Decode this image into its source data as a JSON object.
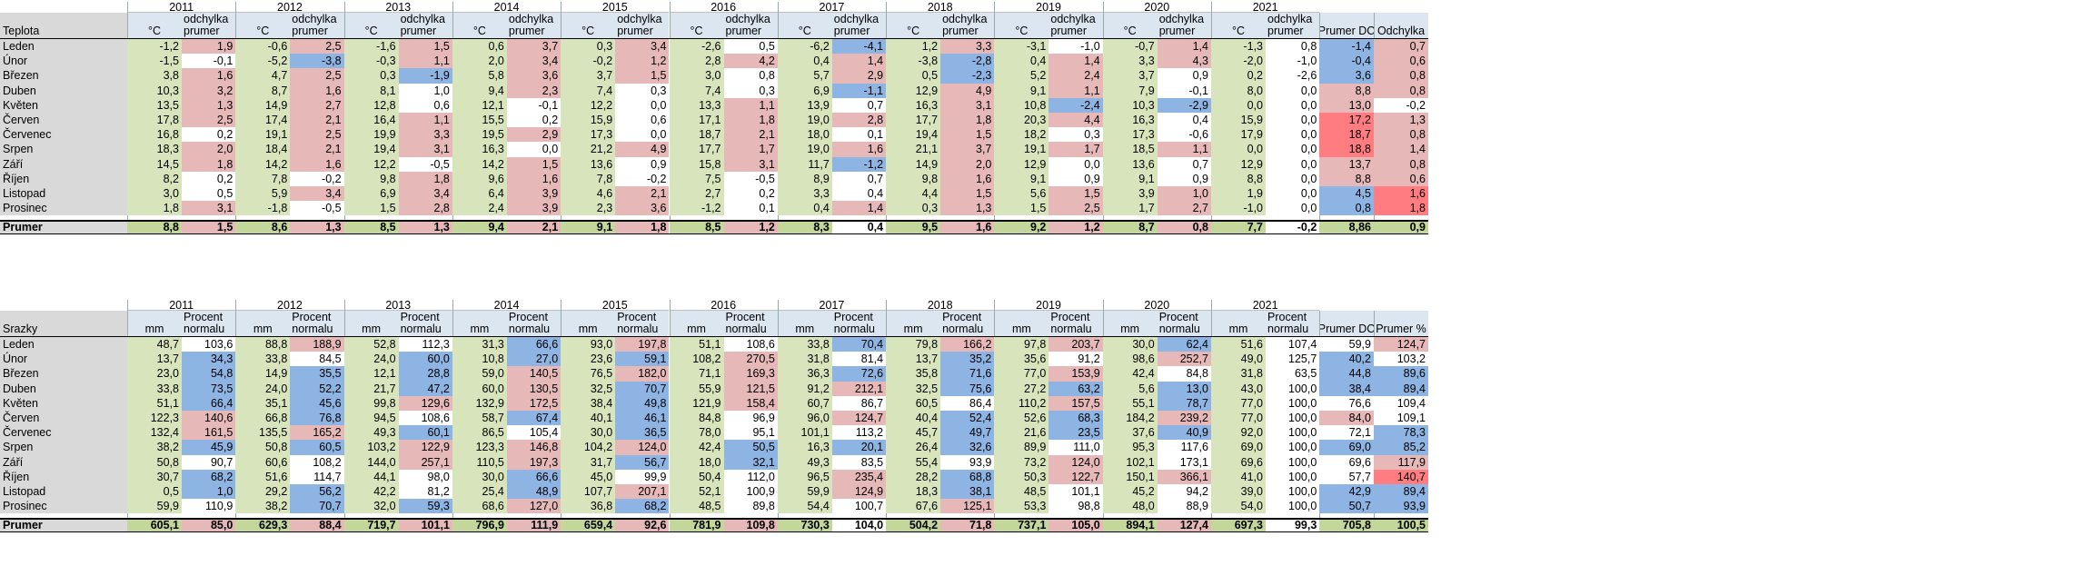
{
  "colors": {
    "green": "#d8e4bc",
    "header": "#dce6f1",
    "pink": "#e6b8b7",
    "blue": "#8db4e2",
    "grey": "#d9d9d9",
    "totals_green": "#c4d79b",
    "white": "#ffffff",
    "pink_strong": "#ff7c80",
    "green_corner": "#008000"
  },
  "teplota": {
    "title": "Teplota",
    "years": [
      "2011",
      "2012",
      "2013",
      "2014",
      "2015",
      "2016",
      "2017",
      "2018",
      "2019",
      "2020",
      "2021"
    ],
    "col_unit": "°C",
    "col_dev_1": "odchylka",
    "col_dev_2": "prumer",
    "summary_headers": [
      "Prumer DC",
      "Odchylka"
    ],
    "months": [
      "Leden",
      "Únor",
      "Březen",
      "Duben",
      "Květen",
      "Červen",
      "Červenec",
      "Srpen",
      "Září",
      "Říjen",
      "Listopad",
      "Prosinec"
    ],
    "rows": [
      {
        "v": [
          "-1,2",
          "-1,5",
          "3,8",
          "10,3",
          "13,5",
          "17,8",
          "16,8",
          "18,3",
          "14,5",
          "8,2",
          "3,0",
          "1,8"
        ],
        "d": [
          "1,9",
          "-0,1",
          "1,6",
          "3,2",
          "1,3",
          "2,5",
          "0,2",
          "2,0",
          "1,8",
          "0,2",
          "0,5",
          "3,1"
        ],
        "dc": [
          "p",
          "w",
          "p",
          "p",
          "p",
          "p",
          "w",
          "p",
          "p",
          "w",
          "w",
          "p"
        ]
      },
      {
        "v": [
          "-0,6",
          "-5,2",
          "4,7",
          "8,7",
          "14,9",
          "17,4",
          "19,1",
          "18,4",
          "14,2",
          "7,8",
          "5,9",
          "-1,8"
        ],
        "d": [
          "2,5",
          "-3,8",
          "2,5",
          "1,6",
          "2,7",
          "2,1",
          "2,5",
          "2,1",
          "1,6",
          "-0,2",
          "3,4",
          "-0,5"
        ],
        "dc": [
          "p",
          "b",
          "p",
          "p",
          "p",
          "p",
          "p",
          "p",
          "p",
          "w",
          "p",
          "w"
        ]
      },
      {
        "v": [
          "-1,6",
          "-0,3",
          "0,3",
          "8,1",
          "12,8",
          "16,4",
          "19,9",
          "19,4",
          "12,2",
          "9,8",
          "6,9",
          "1,5"
        ],
        "d": [
          "1,5",
          "1,1",
          "-1,9",
          "1,0",
          "0,6",
          "1,1",
          "3,3",
          "3,1",
          "-0,5",
          "1,8",
          "3,4",
          "2,8"
        ],
        "dc": [
          "p",
          "p",
          "b",
          "w",
          "w",
          "p",
          "p",
          "p",
          "w",
          "p",
          "p",
          "p"
        ]
      },
      {
        "v": [
          "0,6",
          "2,0",
          "5,8",
          "9,4",
          "12,1",
          "15,5",
          "19,5",
          "16,3",
          "14,2",
          "9,6",
          "6,4",
          "2,4"
        ],
        "d": [
          "3,7",
          "3,4",
          "3,6",
          "2,3",
          "-0,1",
          "0,2",
          "2,9",
          "0,0",
          "1,5",
          "1,6",
          "3,9",
          "3,9"
        ],
        "dc": [
          "p",
          "p",
          "p",
          "p",
          "w",
          "w",
          "p",
          "w",
          "p",
          "p",
          "p",
          "p"
        ]
      },
      {
        "v": [
          "0,3",
          "-0,2",
          "3,7",
          "7,4",
          "12,2",
          "15,9",
          "17,3",
          "21,2",
          "13,6",
          "7,8",
          "4,6",
          "2,3"
        ],
        "d": [
          "3,4",
          "1,2",
          "1,5",
          "0,3",
          "0,0",
          "0,6",
          "0,0",
          "4,9",
          "0,9",
          "-0,2",
          "2,1",
          "3,6"
        ],
        "dc": [
          "p",
          "p",
          "p",
          "w",
          "w",
          "w",
          "w",
          "p",
          "w",
          "w",
          "p",
          "p"
        ]
      },
      {
        "v": [
          "-2,6",
          "2,8",
          "3,0",
          "7,4",
          "13,3",
          "17,1",
          "18,7",
          "17,7",
          "15,8",
          "7,5",
          "2,7",
          "-1,2"
        ],
        "d": [
          "0,5",
          "4,2",
          "0,8",
          "0,3",
          "1,1",
          "1,8",
          "2,1",
          "1,7",
          "3,1",
          "-0,5",
          "0,2",
          "0,1"
        ],
        "dc": [
          "w",
          "p",
          "w",
          "w",
          "p",
          "p",
          "p",
          "p",
          "p",
          "w",
          "w",
          "w"
        ]
      },
      {
        "v": [
          "-6,2",
          "0,4",
          "5,7",
          "6,9",
          "13,9",
          "19,0",
          "18,0",
          "19,0",
          "11,7",
          "8,9",
          "3,3",
          "0,4"
        ],
        "d": [
          "-4,1",
          "1,4",
          "2,9",
          "-1,1",
          "0,7",
          "2,8",
          "0,1",
          "1,6",
          "-1,2",
          "0,7",
          "0,4",
          "1,4"
        ],
        "dc": [
          "b",
          "p",
          "p",
          "b",
          "w",
          "p",
          "w",
          "p",
          "b",
          "w",
          "w",
          "p"
        ]
      },
      {
        "v": [
          "1,2",
          "-3,8",
          "0,5",
          "12,9",
          "16,3",
          "17,7",
          "19,4",
          "21,1",
          "14,9",
          "9,8",
          "4,4",
          "0,3"
        ],
        "d": [
          "3,3",
          "-2,8",
          "-2,3",
          "4,9",
          "3,1",
          "1,8",
          "1,5",
          "3,7",
          "2,0",
          "1,6",
          "1,5",
          "1,3"
        ],
        "dc": [
          "p",
          "b",
          "b",
          "p",
          "p",
          "p",
          "p",
          "p",
          "p",
          "p",
          "p",
          "p"
        ]
      },
      {
        "v": [
          "-3,1",
          "0,4",
          "5,2",
          "9,1",
          "10,8",
          "20,3",
          "18,2",
          "19,1",
          "12,9",
          "9,1",
          "5,6",
          "1,5"
        ],
        "d": [
          "-1,0",
          "1,4",
          "2,4",
          "1,1",
          "-2,4",
          "4,4",
          "0,3",
          "1,7",
          "0,0",
          "0,9",
          "1,5",
          "2,5"
        ],
        "dc": [
          "w",
          "p",
          "p",
          "p",
          "b",
          "p",
          "w",
          "p",
          "w",
          "w",
          "p",
          "p"
        ]
      },
      {
        "v": [
          "-0,7",
          "3,3",
          "3,7",
          "7,9",
          "10,3",
          "16,3",
          "17,3",
          "18,5",
          "13,6",
          "9,1",
          "3,9",
          "1,7"
        ],
        "d": [
          "1,4",
          "4,3",
          "0,9",
          "-0,1",
          "-2,9",
          "0,4",
          "-0,6",
          "1,1",
          "0,7",
          "0,9",
          "1,0",
          "2,7"
        ],
        "dc": [
          "p",
          "p",
          "w",
          "w",
          "b",
          "w",
          "w",
          "p",
          "w",
          "w",
          "p",
          "p"
        ]
      },
      {
        "v": [
          "-1,3",
          "-2,0",
          "0,2",
          "8,0",
          "0,0",
          "15,9",
          "17,9",
          "0,0",
          "12,9",
          "8,8",
          "1,9",
          "-1,0"
        ],
        "d": [
          "0,8",
          "-1,0",
          "-2,6",
          "0,0",
          "0,0",
          "0,0",
          "0,0",
          "0,0",
          "0,0",
          "0,0",
          "0,0",
          "0,0"
        ],
        "dc": [
          "w",
          "w",
          "w",
          "w",
          "w",
          "w",
          "w",
          "w",
          "w",
          "w",
          "w",
          "w"
        ]
      }
    ],
    "dc": [
      "-1,4",
      "-0,4",
      "3,6",
      "8,8",
      "13,0",
      "17,2",
      "18,7",
      "18,8",
      "13,7",
      "8,8",
      "4,5",
      "0,8"
    ],
    "dcc": [
      "b",
      "b",
      "b",
      "p",
      "p",
      "s",
      "s",
      "s",
      "p",
      "p",
      "b",
      "b"
    ],
    "od": [
      "0,7",
      "0,6",
      "0,8",
      "0,8",
      "-0,2",
      "1,3",
      "0,8",
      "1,4",
      "0,8",
      "0,6",
      "1,6",
      "1,8"
    ],
    "odc": [
      "p",
      "p",
      "p",
      "p",
      "w",
      "p",
      "p",
      "p",
      "p",
      "p",
      "s",
      "s"
    ],
    "total_label": "Prumer",
    "totals": [
      [
        "8,8",
        "1,5"
      ],
      [
        "8,6",
        "1,3"
      ],
      [
        "8,5",
        "1,3"
      ],
      [
        "9,4",
        "2,1"
      ],
      [
        "9,1",
        "1,8"
      ],
      [
        "8,5",
        "1,2"
      ],
      [
        "8,3",
        "0,4"
      ],
      [
        "9,5",
        "1,6"
      ],
      [
        "9,2",
        "1,2"
      ],
      [
        "8,7",
        "0,8"
      ],
      [
        "7,7",
        "-0,2"
      ]
    ],
    "total_dc": "8,86",
    "total_od": "0,9"
  },
  "srazky": {
    "title": "Srazky",
    "years": [
      "2011",
      "2012",
      "2013",
      "2014",
      "2015",
      "2016",
      "2017",
      "2018",
      "2019",
      "2020",
      "2021"
    ],
    "col_unit": "mm",
    "col_dev_1": "Procent",
    "col_dev_2": "normalu",
    "summary_headers": [
      "Prumer DC",
      "Prumer %"
    ],
    "months": [
      "Leden",
      "Únor",
      "Březen",
      "Duben",
      "Květen",
      "Červen",
      "Červenec",
      "Srpen",
      "Září",
      "Říjen",
      "Listopad",
      "Prosinec"
    ],
    "rows": [
      {
        "v": [
          "48,7",
          "13,7",
          "23,0",
          "33,8",
          "51,1",
          "122,3",
          "132,4",
          "38,2",
          "50,8",
          "30,7",
          "0,5",
          "59,9"
        ],
        "d": [
          "103,6",
          "34,3",
          "54,8",
          "73,5",
          "66,4",
          "140,6",
          "161,5",
          "45,9",
          "90,7",
          "68,2",
          "1,0",
          "110,9"
        ],
        "dc": [
          "w",
          "b",
          "b",
          "b",
          "b",
          "p",
          "p",
          "b",
          "w",
          "b",
          "b",
          "w"
        ]
      },
      {
        "v": [
          "88,8",
          "33,8",
          "14,9",
          "24,0",
          "35,1",
          "66,8",
          "135,5",
          "50,8",
          "60,6",
          "51,6",
          "29,2",
          "38,2"
        ],
        "d": [
          "188,9",
          "84,5",
          "35,5",
          "52,2",
          "45,6",
          "76,8",
          "165,2",
          "60,5",
          "108,2",
          "114,7",
          "56,2",
          "70,7"
        ],
        "dc": [
          "p",
          "w",
          "b",
          "b",
          "b",
          "b",
          "p",
          "b",
          "w",
          "w",
          "b",
          "b"
        ]
      },
      {
        "v": [
          "52,8",
          "24,0",
          "12,1",
          "21,7",
          "99,8",
          "94,5",
          "49,3",
          "103,2",
          "144,0",
          "44,1",
          "42,2",
          "32,0"
        ],
        "d": [
          "112,3",
          "60,0",
          "28,8",
          "47,2",
          "129,6",
          "108,6",
          "60,1",
          "122,9",
          "257,1",
          "98,0",
          "81,2",
          "59,3"
        ],
        "dc": [
          "w",
          "b",
          "b",
          "b",
          "p",
          "w",
          "b",
          "p",
          "p",
          "w",
          "w",
          "b"
        ]
      },
      {
        "v": [
          "31,3",
          "10,8",
          "59,0",
          "60,0",
          "132,9",
          "58,7",
          "86,5",
          "123,3",
          "110,5",
          "30,0",
          "25,4",
          "68,6"
        ],
        "d": [
          "66,6",
          "27,0",
          "140,5",
          "130,5",
          "172,5",
          "67,4",
          "105,4",
          "146,8",
          "197,3",
          "66,6",
          "48,9",
          "127,0"
        ],
        "dc": [
          "b",
          "b",
          "p",
          "p",
          "p",
          "b",
          "w",
          "p",
          "p",
          "b",
          "b",
          "p"
        ]
      },
      {
        "v": [
          "93,0",
          "23,6",
          "76,5",
          "32,5",
          "38,4",
          "40,1",
          "30,0",
          "104,2",
          "31,7",
          "45,0",
          "107,7",
          "36,8"
        ],
        "d": [
          "197,8",
          "59,1",
          "182,0",
          "70,7",
          "49,8",
          "46,1",
          "36,5",
          "124,0",
          "56,7",
          "99,9",
          "207,1",
          "68,2"
        ],
        "dc": [
          "p",
          "b",
          "p",
          "b",
          "b",
          "b",
          "b",
          "p",
          "b",
          "w",
          "p",
          "b"
        ]
      },
      {
        "v": [
          "51,1",
          "108,2",
          "71,1",
          "55,9",
          "121,9",
          "84,8",
          "78,0",
          "42,4",
          "18,0",
          "50,4",
          "52,1",
          "48,5"
        ],
        "d": [
          "108,6",
          "270,5",
          "169,3",
          "121,5",
          "158,4",
          "96,9",
          "95,1",
          "50,5",
          "32,1",
          "112,0",
          "100,9",
          "89,8"
        ],
        "dc": [
          "w",
          "p",
          "p",
          "p",
          "p",
          "w",
          "w",
          "b",
          "b",
          "w",
          "w",
          "w"
        ]
      },
      {
        "v": [
          "33,8",
          "31,8",
          "36,3",
          "91,2",
          "60,7",
          "96,0",
          "101,1",
          "16,3",
          "49,3",
          "96,5",
          "59,9",
          "54,4"
        ],
        "d": [
          "70,4",
          "81,4",
          "72,6",
          "212,1",
          "86,7",
          "124,7",
          "113,2",
          "20,1",
          "83,5",
          "235,4",
          "124,9",
          "100,7"
        ],
        "dc": [
          "b",
          "w",
          "b",
          "p",
          "w",
          "p",
          "w",
          "b",
          "w",
          "p",
          "p",
          "w"
        ]
      },
      {
        "v": [
          "79,8",
          "13,7",
          "35,8",
          "32,5",
          "60,5",
          "40,4",
          "45,7",
          "26,4",
          "55,4",
          "28,2",
          "18,3",
          "67,6"
        ],
        "d": [
          "166,2",
          "35,2",
          "71,6",
          "75,6",
          "86,4",
          "52,4",
          "49,7",
          "32,6",
          "93,9",
          "68,8",
          "38,1",
          "125,1"
        ],
        "dc": [
          "p",
          "b",
          "b",
          "b",
          "w",
          "b",
          "b",
          "b",
          "w",
          "b",
          "b",
          "p"
        ]
      },
      {
        "v": [
          "97,8",
          "35,6",
          "77,0",
          "27,2",
          "110,2",
          "52,6",
          "21,6",
          "89,9",
          "73,2",
          "50,3",
          "48,5",
          "53,3"
        ],
        "d": [
          "203,7",
          "91,2",
          "153,9",
          "63,2",
          "157,5",
          "68,3",
          "23,5",
          "111,0",
          "124,0",
          "122,7",
          "101,1",
          "98,8"
        ],
        "dc": [
          "p",
          "w",
          "p",
          "b",
          "p",
          "b",
          "b",
          "w",
          "p",
          "p",
          "w",
          "w"
        ]
      },
      {
        "v": [
          "30,0",
          "98,6",
          "42,4",
          "5,6",
          "55,1",
          "184,2",
          "37,6",
          "95,3",
          "102,1",
          "150,1",
          "45,2",
          "48,0"
        ],
        "d": [
          "62,4",
          "252,7",
          "84,8",
          "13,0",
          "78,7",
          "239,2",
          "40,9",
          "117,6",
          "173,1",
          "366,1",
          "94,2",
          "88,9"
        ],
        "dc": [
          "b",
          "p",
          "w",
          "b",
          "b",
          "p",
          "b",
          "w",
          "w",
          "p",
          "w",
          "w"
        ]
      },
      {
        "v": [
          "51,6",
          "49,0",
          "31,8",
          "43,0",
          "77,0",
          "77,0",
          "92,0",
          "69,0",
          "69,6",
          "41,0",
          "39,0",
          "54,0"
        ],
        "d": [
          "107,4",
          "125,7",
          "63,5",
          "100,0",
          "100,0",
          "100,0",
          "100,0",
          "100,0",
          "100,0",
          "100,0",
          "100,0",
          "100,0"
        ],
        "dc": [
          "w",
          "w",
          "w",
          "w",
          "w",
          "w",
          "w",
          "w",
          "w",
          "w",
          "w",
          "w"
        ]
      }
    ],
    "dc": [
      "59,9",
      "40,2",
      "44,8",
      "38,4",
      "76,6",
      "84,0",
      "72,1",
      "69,0",
      "69,6",
      "57,7",
      "42,9",
      "50,7"
    ],
    "dcc": [
      "w",
      "b",
      "b",
      "b",
      "w",
      "p",
      "w",
      "b",
      "w",
      "w",
      "b",
      "b"
    ],
    "od": [
      "124,7",
      "103,2",
      "89,6",
      "89,4",
      "109,4",
      "109,1",
      "78,3",
      "85,2",
      "117,9",
      "140,7",
      "89,4",
      "93,9"
    ],
    "odc": [
      "p",
      "w",
      "b",
      "b",
      "w",
      "w",
      "b",
      "b",
      "p",
      "s",
      "b",
      "b"
    ],
    "total_label": "Prumer",
    "totals": [
      [
        "605,1",
        "85,0"
      ],
      [
        "629,3",
        "88,4"
      ],
      [
        "719,7",
        "101,1"
      ],
      [
        "796,9",
        "111,9"
      ],
      [
        "659,4",
        "92,6"
      ],
      [
        "781,9",
        "109,8"
      ],
      [
        "730,3",
        "104,0"
      ],
      [
        "504,2",
        "71,8"
      ],
      [
        "737,1",
        "105,0"
      ],
      [
        "894,1",
        "127,4"
      ],
      [
        "697,3",
        "99,3"
      ]
    ],
    "total_dc": "705,8",
    "total_od": "100,5"
  }
}
